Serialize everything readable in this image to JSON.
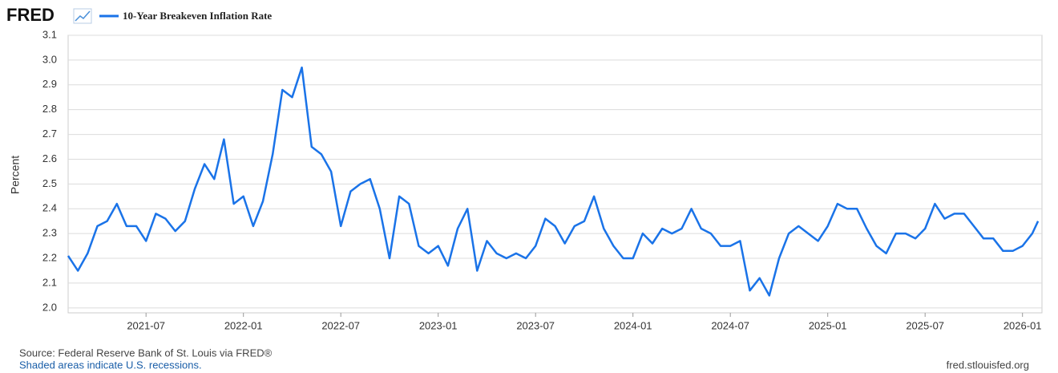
{
  "logo": "FRED",
  "source": "Source: Federal Reserve Bank of St. Louis via FRED®",
  "note": "Shaded areas indicate U.S. recessions.",
  "url": "fred.stlouisfed.org",
  "chart_data": {
    "type": "line",
    "y_label": "Percent",
    "x": [
      2021.1,
      2021.15,
      2021.2,
      2021.25,
      2021.3,
      2021.35,
      2021.4,
      2021.45,
      2021.5,
      2021.55,
      2021.6,
      2021.65,
      2021.7,
      2021.75,
      2021.8,
      2021.85,
      2021.9,
      2021.95,
      2022.0,
      2022.05,
      2022.1,
      2022.15,
      2022.2,
      2022.25,
      2022.3,
      2022.35,
      2022.4,
      2022.45,
      2022.5,
      2022.55,
      2022.6,
      2022.65,
      2022.7,
      2022.75,
      2022.8,
      2022.85,
      2022.9,
      2022.95,
      2023.0,
      2023.05,
      2023.1,
      2023.15,
      2023.2,
      2023.25,
      2023.3,
      2023.35,
      2023.4,
      2023.45,
      2023.5,
      2023.55,
      2023.6,
      2023.65,
      2023.7,
      2023.75,
      2023.8,
      2023.85,
      2023.9,
      2023.95,
      2024.0,
      2024.05,
      2024.1,
      2024.15,
      2024.2,
      2024.25,
      2024.3,
      2024.35,
      2024.4,
      2024.45,
      2024.5,
      2024.55,
      2024.6,
      2024.65,
      2024.7,
      2024.75,
      2024.8,
      2024.85,
      2024.9,
      2024.95,
      2025.0,
      2025.05,
      2025.1,
      2025.15,
      2025.2,
      2025.25,
      2025.3,
      2025.35,
      2025.4,
      2025.45,
      2025.5,
      2025.55,
      2025.6,
      2025.65,
      2025.7,
      2025.75,
      2025.8,
      2025.85,
      2025.9,
      2025.95,
      2026.0,
      2026.05,
      2026.08
    ],
    "series": [
      {
        "name": "10-Year Breakeven Inflation Rate",
        "color": "#1a73e8",
        "values": [
          2.21,
          2.15,
          2.22,
          2.33,
          2.35,
          2.42,
          2.33,
          2.33,
          2.27,
          2.38,
          2.36,
          2.31,
          2.35,
          2.48,
          2.58,
          2.52,
          2.68,
          2.42,
          2.45,
          2.33,
          2.43,
          2.62,
          2.88,
          2.85,
          2.97,
          2.65,
          2.62,
          2.55,
          2.33,
          2.47,
          2.5,
          2.52,
          2.4,
          2.2,
          2.45,
          2.42,
          2.25,
          2.22,
          2.25,
          2.17,
          2.32,
          2.4,
          2.15,
          2.27,
          2.22,
          2.2,
          2.22,
          2.2,
          2.25,
          2.36,
          2.33,
          2.26,
          2.33,
          2.35,
          2.45,
          2.32,
          2.25,
          2.2,
          2.2,
          2.3,
          2.26,
          2.32,
          2.3,
          2.32,
          2.4,
          2.32,
          2.3,
          2.25,
          2.25,
          2.27,
          2.07,
          2.12,
          2.05,
          2.2,
          2.3,
          2.33,
          2.3,
          2.27,
          2.33,
          2.42,
          2.4,
          2.4,
          2.32,
          2.25,
          2.22,
          2.3,
          2.3,
          2.28,
          2.32,
          2.42,
          2.36,
          2.38,
          2.38,
          2.33,
          2.28,
          2.28,
          2.23,
          2.23,
          2.25,
          2.3,
          2.35
        ]
      }
    ],
    "xlim": [
      2021.1,
      2026.1
    ],
    "xticks": [
      {
        "value": 2021.5,
        "label": "2021-07"
      },
      {
        "value": 2022.0,
        "label": "2022-01"
      },
      {
        "value": 2022.5,
        "label": "2022-07"
      },
      {
        "value": 2023.0,
        "label": "2023-01"
      },
      {
        "value": 2023.5,
        "label": "2023-07"
      },
      {
        "value": 2024.0,
        "label": "2024-01"
      },
      {
        "value": 2024.5,
        "label": "2024-07"
      },
      {
        "value": 2025.0,
        "label": "2025-01"
      },
      {
        "value": 2025.5,
        "label": "2025-07"
      },
      {
        "value": 2026.0,
        "label": "2026-01"
      }
    ],
    "ylim": [
      1.98,
      3.1
    ],
    "yticks": [
      {
        "value": 2,
        "label": "2.0"
      },
      2.1,
      2.2,
      2.3,
      2.4,
      2.5,
      2.6,
      2.7,
      2.8,
      2.9,
      {
        "value": 3,
        "label": "3.0"
      },
      3.1
    ],
    "grid": true
  }
}
